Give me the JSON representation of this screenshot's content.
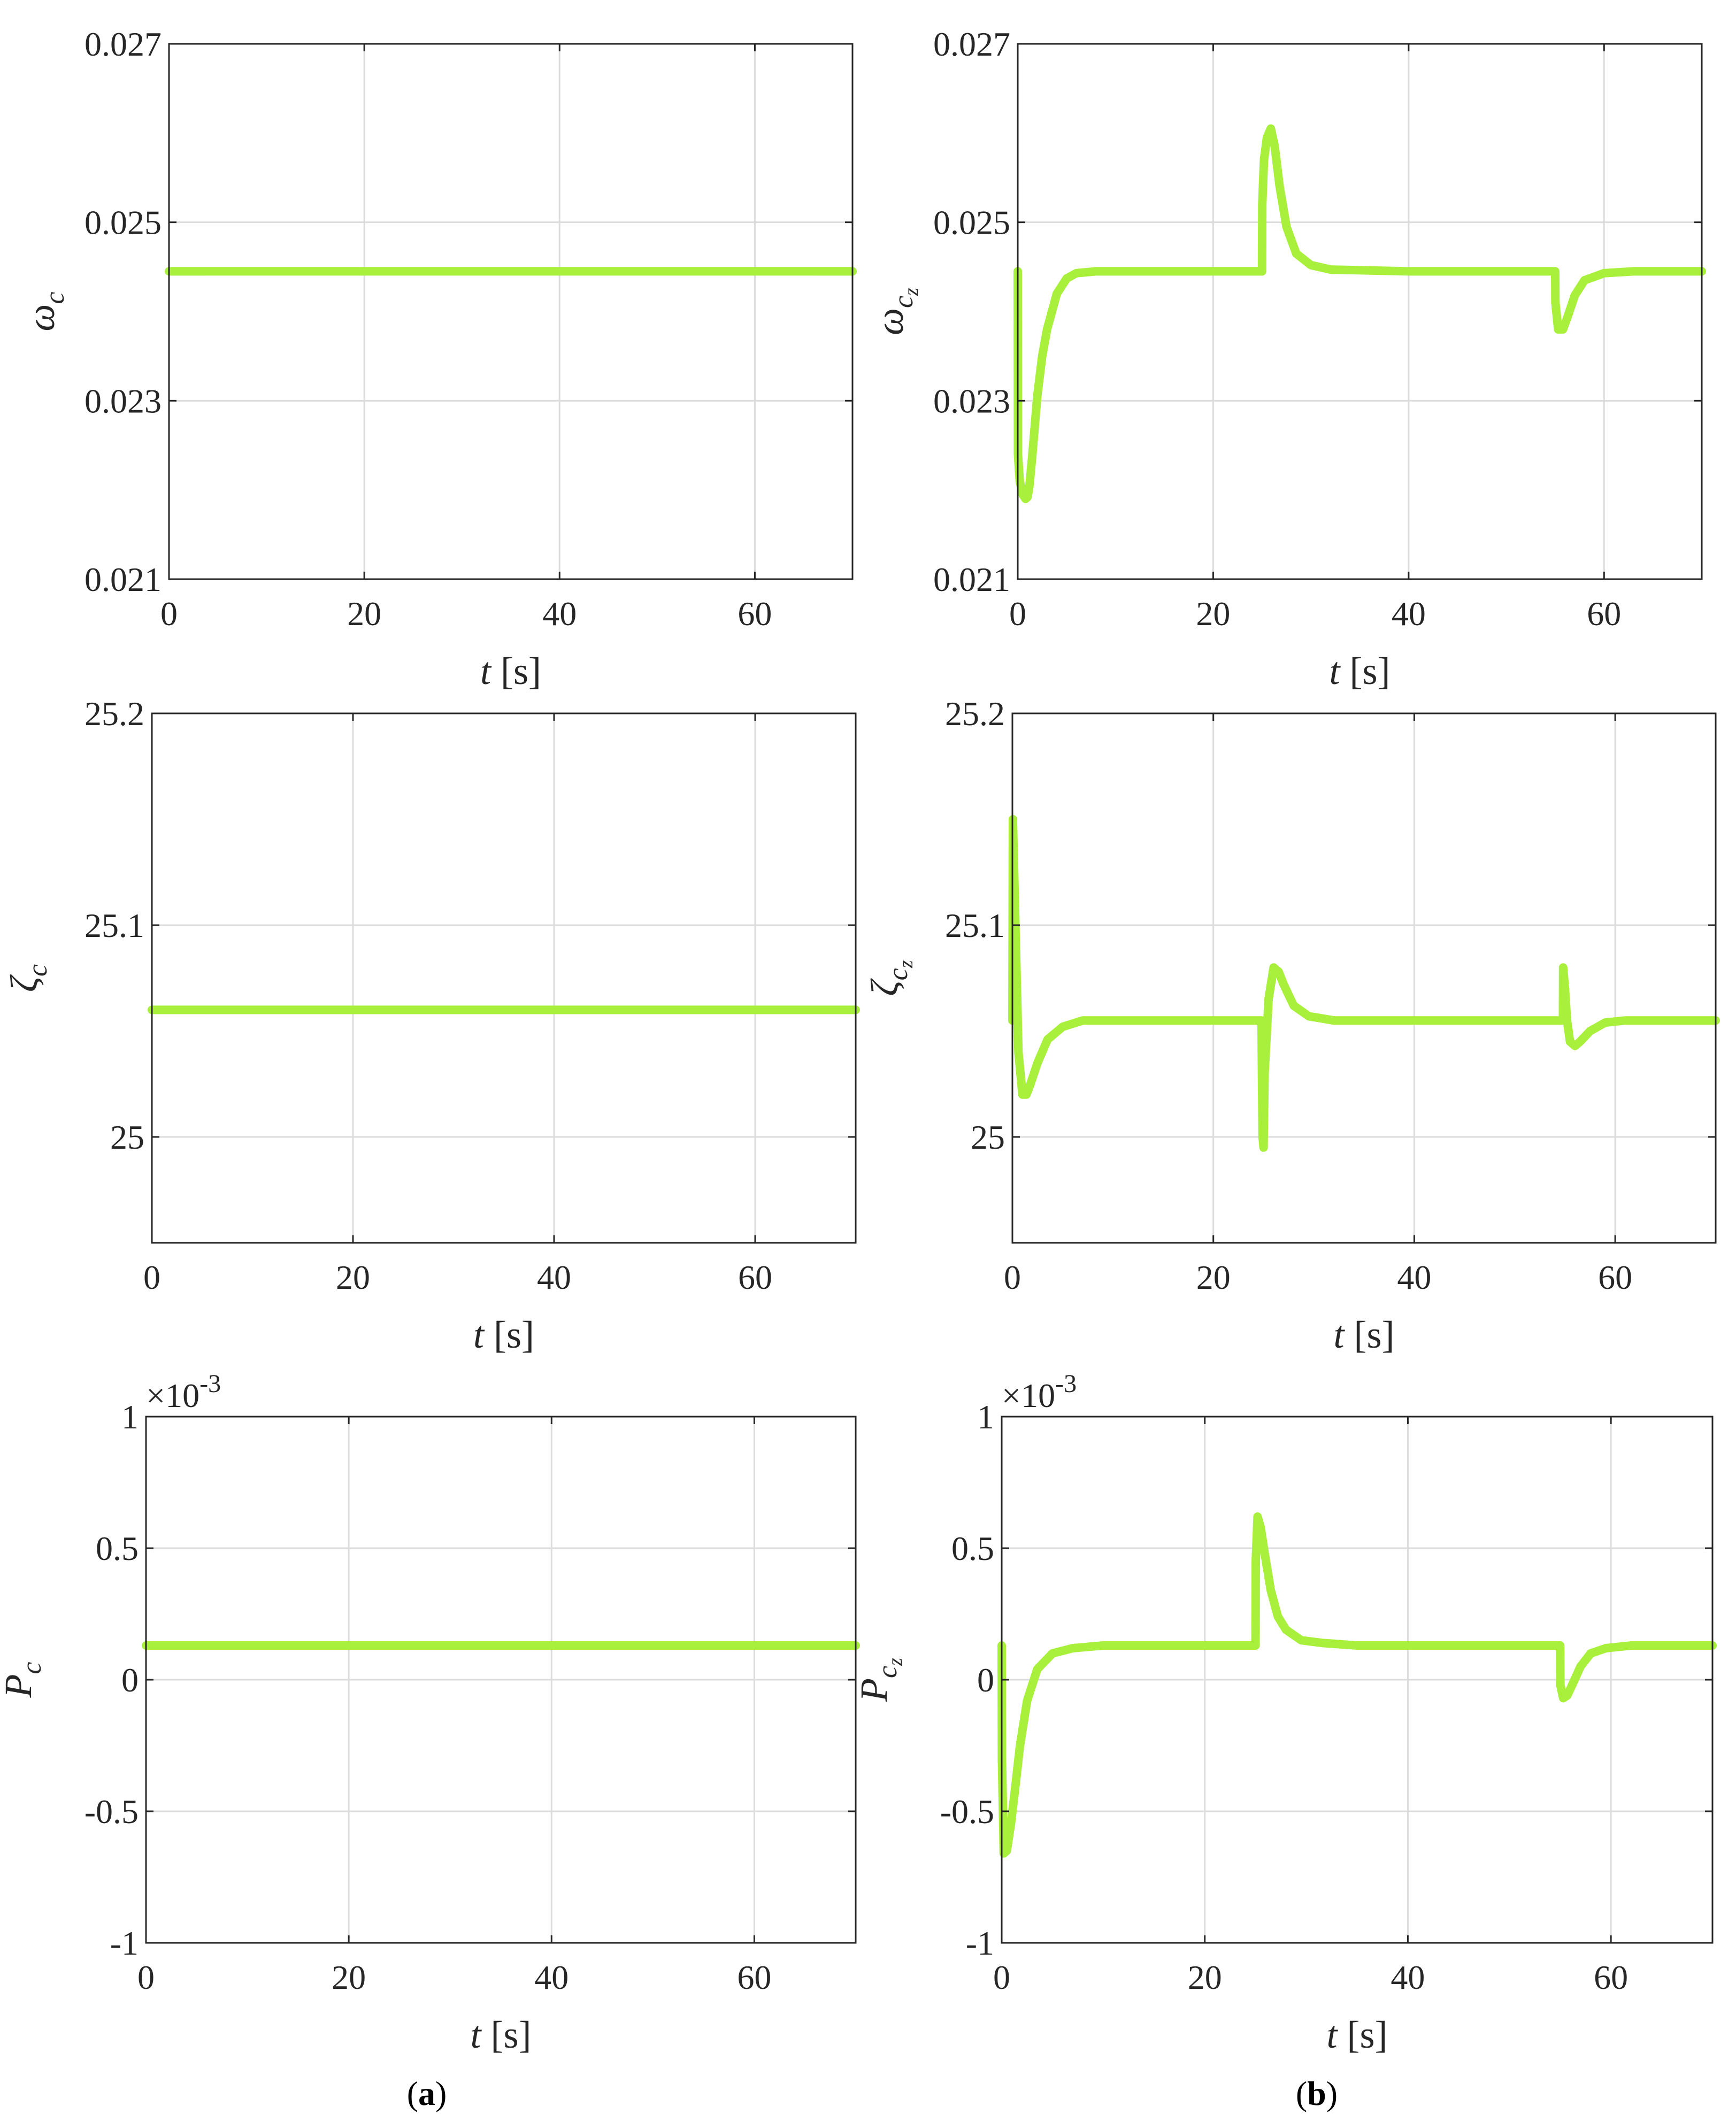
{
  "captions": {
    "a": "(a)",
    "b": "(b)"
  },
  "series_color": "#A8F03C",
  "chart_data": [
    {
      "id": "omega_c",
      "type": "line",
      "ylabel": {
        "main": "ω",
        "sub": "c"
      },
      "xlabel": {
        "var": "t",
        "unit": "[s]"
      },
      "xlim": [
        0,
        70
      ],
      "ylim": [
        0.021,
        0.027
      ],
      "xticks": [
        0,
        20,
        40,
        60
      ],
      "xtick_labels": [
        "0",
        "20",
        "40",
        "60"
      ],
      "yticks": [
        0.021,
        0.023,
        0.025,
        0.027
      ],
      "ytick_labels": [
        "0.021",
        "0.023",
        "0.025",
        "0.027"
      ],
      "grid": true,
      "series": [
        {
          "x": [
            0,
            70
          ],
          "y": [
            0.02445,
            0.02445
          ]
        }
      ]
    },
    {
      "id": "omega_cz",
      "type": "line",
      "ylabel": {
        "main": "ω",
        "sub": "c",
        "subsub": "z"
      },
      "xlabel": {
        "var": "t",
        "unit": "[s]"
      },
      "xlim": [
        0,
        70
      ],
      "ylim": [
        0.021,
        0.027
      ],
      "xticks": [
        0,
        20,
        40,
        60
      ],
      "xtick_labels": [
        "0",
        "20",
        "40",
        "60"
      ],
      "yticks": [
        0.021,
        0.023,
        0.025,
        0.027
      ],
      "ytick_labels": [
        "0.021",
        "0.023",
        "0.025",
        "0.027"
      ],
      "grid": true,
      "series": [
        {
          "x": [
            0,
            0.02,
            0.2,
            0.5,
            0.8,
            1.0,
            1.2,
            1.5,
            2.0,
            2.5,
            3.0,
            4.0,
            5.0,
            6.0,
            8.0,
            12.0,
            25.0,
            25.02,
            25.2,
            25.5,
            25.9,
            26.3,
            26.8,
            27.5,
            28.5,
            30.0,
            32.0,
            40.0,
            55.0,
            55.02,
            55.3,
            55.8,
            56.3,
            57.0,
            58.0,
            60.0,
            63.0,
            70.0
          ],
          "y": [
            0.02445,
            0.0224,
            0.0221,
            0.02195,
            0.0219,
            0.02192,
            0.02205,
            0.0224,
            0.02305,
            0.0235,
            0.0238,
            0.0242,
            0.02437,
            0.02443,
            0.02445,
            0.02445,
            0.02445,
            0.0252,
            0.0257,
            0.02595,
            0.02605,
            0.02585,
            0.0254,
            0.02495,
            0.02465,
            0.02452,
            0.02447,
            0.02445,
            0.02445,
            0.0241,
            0.0238,
            0.0238,
            0.02395,
            0.02418,
            0.02435,
            0.02443,
            0.02445,
            0.02445
          ]
        }
      ]
    },
    {
      "id": "zeta_c",
      "type": "line",
      "ylabel": {
        "main": "ζ",
        "sub": "c"
      },
      "xlabel": {
        "var": "t",
        "unit": "[s]"
      },
      "xlim": [
        0,
        70
      ],
      "ylim": [
        24.95,
        25.2
      ],
      "xticks": [
        0,
        20,
        40,
        60
      ],
      "xtick_labels": [
        "0",
        "20",
        "40",
        "60"
      ],
      "yticks": [
        25,
        25.1,
        25.2
      ],
      "ytick_labels": [
        "25",
        "25.1",
        "25.2"
      ],
      "grid": true,
      "series": [
        {
          "x": [
            0,
            70
          ],
          "y": [
            25.06,
            25.06
          ]
        }
      ]
    },
    {
      "id": "zeta_cz",
      "type": "line",
      "ylabel": {
        "main": "ζ",
        "sub": "c",
        "subsub": "z"
      },
      "xlabel": {
        "var": "t",
        "unit": "[s]"
      },
      "xlim": [
        0,
        70
      ],
      "ylim": [
        24.95,
        25.2
      ],
      "xticks": [
        0,
        20,
        40,
        60
      ],
      "xtick_labels": [
        "0",
        "20",
        "40",
        "60"
      ],
      "yticks": [
        25,
        25.1,
        25.2
      ],
      "ytick_labels": [
        "25",
        "25.1",
        "25.2"
      ],
      "grid": true,
      "series": [
        {
          "x": [
            0,
            0.05,
            0.3,
            0.6,
            1.0,
            1.4,
            1.8,
            2.5,
            3.5,
            5.0,
            7.0,
            10.0,
            24.8,
            24.82,
            24.9,
            25.0,
            25.1,
            25.5,
            26.0,
            26.5,
            27.0,
            28.0,
            29.5,
            32.0,
            40.0,
            54.8,
            54.82,
            55.0,
            55.2,
            55.5,
            56.0,
            56.5,
            57.5,
            59.0,
            61.0,
            65.0,
            70.0
          ],
          "y": [
            25.055,
            25.15,
            25.1,
            25.04,
            25.02,
            25.02,
            25.025,
            25.035,
            25.046,
            25.052,
            25.055,
            25.055,
            25.055,
            25.04,
            25.0,
            24.995,
            25.03,
            25.065,
            25.08,
            25.078,
            25.072,
            25.062,
            25.057,
            25.055,
            25.055,
            25.055,
            25.08,
            25.07,
            25.055,
            25.045,
            25.043,
            25.045,
            25.05,
            25.054,
            25.055,
            25.055,
            25.055
          ]
        }
      ]
    },
    {
      "id": "P_c",
      "type": "line",
      "ylabel": {
        "main": "P",
        "sub": "c"
      },
      "xlabel": {
        "var": "t",
        "unit": "[s]"
      },
      "exponent": "×10",
      "exponent_power": "-3",
      "xlim": [
        0,
        70
      ],
      "ylim": [
        -0.001,
        0.001
      ],
      "xticks": [
        0,
        20,
        40,
        60
      ],
      "xtick_labels": [
        "0",
        "20",
        "40",
        "60"
      ],
      "yticks": [
        -0.001,
        -0.0005,
        0,
        0.0005,
        0.001
      ],
      "ytick_labels": [
        "-1",
        "-0.5",
        "0",
        "0.5",
        "1"
      ],
      "grid": true,
      "series": [
        {
          "x": [
            0,
            70
          ],
          "y": [
            0.00013,
            0.00013
          ]
        }
      ]
    },
    {
      "id": "P_cz",
      "type": "line",
      "ylabel": {
        "main": "P",
        "sub": "c",
        "subsub": "z"
      },
      "xlabel": {
        "var": "t",
        "unit": "[s]"
      },
      "exponent": "×10",
      "exponent_power": "-3",
      "xlim": [
        0,
        70
      ],
      "ylim": [
        -0.001,
        0.001
      ],
      "xticks": [
        0,
        20,
        40,
        60
      ],
      "xtick_labels": [
        "0",
        "20",
        "40",
        "60"
      ],
      "yticks": [
        -0.001,
        -0.0005,
        0,
        0.0005,
        0.001
      ],
      "ytick_labels": [
        "-1",
        "-0.5",
        "0",
        "0.5",
        "1"
      ],
      "grid": true,
      "series": [
        {
          "x": [
            0,
            0.02,
            0.2,
            0.5,
            0.9,
            1.3,
            1.8,
            2.5,
            3.5,
            5.0,
            7.0,
            10.0,
            25.0,
            25.02,
            25.2,
            25.5,
            25.9,
            26.5,
            27.2,
            28.0,
            29.5,
            31.5,
            35.0,
            55.0,
            55.02,
            55.3,
            55.7,
            56.3,
            57.0,
            58.0,
            59.5,
            62.0,
            70.0
          ],
          "y": [
            0.00013,
            -0.0003,
            -0.00066,
            -0.00065,
            -0.00055,
            -0.00042,
            -0.00025,
            -8e-05,
            4e-05,
            0.0001,
            0.00012,
            0.00013,
            0.00013,
            0.00045,
            0.00062,
            0.00058,
            0.00048,
            0.00034,
            0.00024,
            0.00019,
            0.00015,
            0.00014,
            0.00013,
            0.00013,
            -2e-05,
            -7e-05,
            -6e-05,
            -1e-05,
            5e-05,
            0.0001,
            0.00012,
            0.00013,
            0.00013
          ]
        }
      ]
    }
  ]
}
